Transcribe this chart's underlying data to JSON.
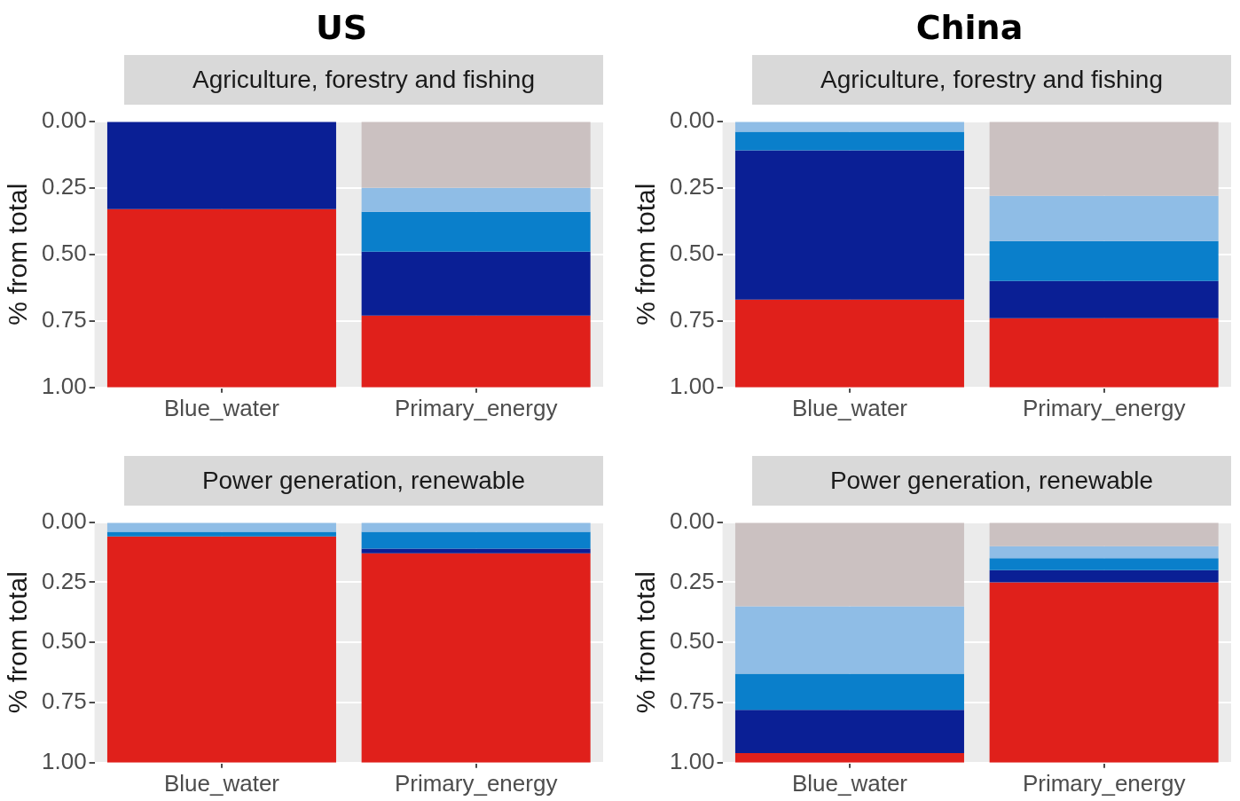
{
  "chart_data": [
    {
      "type": "bar",
      "title": "Agriculture, forestry and fishing",
      "annotations": [
        "US"
      ],
      "ylabel": "% from total",
      "categories": [
        "Blue_water",
        "Primary_energy"
      ],
      "stacked": true,
      "grid": true,
      "ylim": [
        1,
        0
      ],
      "yticks": [
        {
          "value": 0,
          "label": "0.00"
        },
        {
          "value": 0.25,
          "label": "0.25"
        },
        {
          "value": 0.5,
          "label": "0.50"
        },
        {
          "value": 0.75,
          "label": "0.75"
        },
        {
          "value": 1,
          "label": "1.00"
        }
      ],
      "series": [
        {
          "color": "#cbc1c1",
          "values": [
            0,
            0.25
          ]
        },
        {
          "color": "#8fbde6",
          "values": [
            0,
            0.09
          ]
        },
        {
          "color": "#0a7fcb",
          "values": [
            0,
            0.15
          ]
        },
        {
          "color": "#0a1f95",
          "values": [
            0.33,
            0.24
          ]
        },
        {
          "color": "#e0201b",
          "values": [
            0.67,
            0.27
          ]
        }
      ]
    },
    {
      "type": "bar",
      "title": "Agriculture, forestry and fishing",
      "annotations": [
        "China"
      ],
      "ylabel": "% from total",
      "categories": [
        "Blue_water",
        "Primary_energy"
      ],
      "stacked": true,
      "grid": true,
      "ylim": [
        1,
        0
      ],
      "yticks": [
        {
          "value": 0,
          "label": "0.00"
        },
        {
          "value": 0.25,
          "label": "0.25"
        },
        {
          "value": 0.5,
          "label": "0.50"
        },
        {
          "value": 0.75,
          "label": "0.75"
        },
        {
          "value": 1,
          "label": "1.00"
        }
      ],
      "series": [
        {
          "color": "#cbc1c1",
          "values": [
            0,
            0.28
          ]
        },
        {
          "color": "#8fbde6",
          "values": [
            0.04,
            0.17
          ]
        },
        {
          "color": "#0a7fcb",
          "values": [
            0.07,
            0.15
          ]
        },
        {
          "color": "#0a1f95",
          "values": [
            0.56,
            0.14
          ]
        },
        {
          "color": "#e0201b",
          "values": [
            0.33,
            0.26
          ]
        }
      ]
    },
    {
      "type": "bar",
      "title": "Power generation, renewable",
      "ylabel": "% from total",
      "categories": [
        "Blue_water",
        "Primary_energy"
      ],
      "stacked": true,
      "grid": true,
      "ylim": [
        1,
        0
      ],
      "yticks": [
        {
          "value": 0,
          "label": "0.00"
        },
        {
          "value": 0.25,
          "label": "0.25"
        },
        {
          "value": 0.5,
          "label": "0.50"
        },
        {
          "value": 0.75,
          "label": "0.75"
        },
        {
          "value": 1,
          "label": "1.00"
        }
      ],
      "series": [
        {
          "color": "#cbc1c1",
          "values": [
            0,
            0
          ]
        },
        {
          "color": "#8fbde6",
          "values": [
            0.04,
            0.04
          ]
        },
        {
          "color": "#0a7fcb",
          "values": [
            0.02,
            0.07
          ]
        },
        {
          "color": "#0a1f95",
          "values": [
            0,
            0.02
          ]
        },
        {
          "color": "#e0201b",
          "values": [
            0.94,
            0.87
          ]
        }
      ]
    },
    {
      "type": "bar",
      "title": "Power generation, renewable",
      "ylabel": "% from total",
      "categories": [
        "Blue_water",
        "Primary_energy"
      ],
      "stacked": true,
      "grid": true,
      "ylim": [
        1,
        0
      ],
      "yticks": [
        {
          "value": 0,
          "label": "0.00"
        },
        {
          "value": 0.25,
          "label": "0.25"
        },
        {
          "value": 0.5,
          "label": "0.50"
        },
        {
          "value": 0.75,
          "label": "0.75"
        },
        {
          "value": 1,
          "label": "1.00"
        }
      ],
      "series": [
        {
          "color": "#cbc1c1",
          "values": [
            0.35,
            0.1
          ]
        },
        {
          "color": "#8fbde6",
          "values": [
            0.28,
            0.05
          ]
        },
        {
          "color": "#0a7fcb",
          "values": [
            0.15,
            0.05
          ]
        },
        {
          "color": "#0a1f95",
          "values": [
            0.18,
            0.05
          ]
        },
        {
          "color": "#e0201b",
          "values": [
            0.04,
            0.75
          ]
        }
      ]
    }
  ]
}
